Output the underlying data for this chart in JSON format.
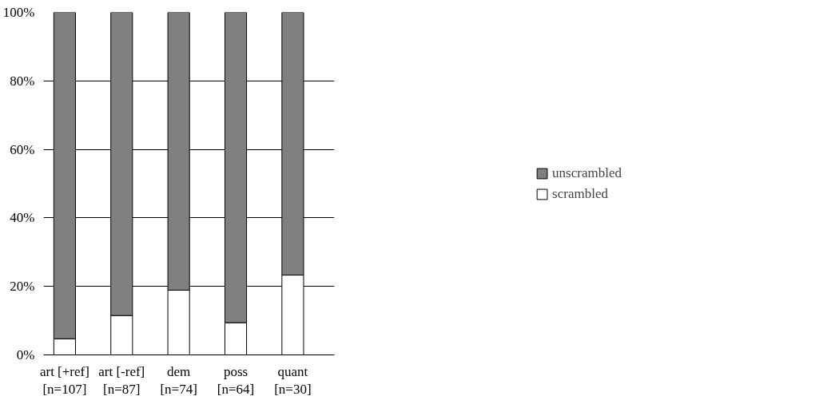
{
  "chart_data": {
    "type": "bar",
    "stacked": true,
    "categories": [
      "art [+ref]\n[n=107]",
      "art [-ref]\n[n=87]",
      "dem\n[n=74]",
      "poss\n[n=64]",
      "quant\n[n=30]"
    ],
    "series": [
      {
        "name": "scrambled",
        "color": "#ffffff",
        "values": [
          4.7,
          11.5,
          18.9,
          9.4,
          23.3
        ]
      },
      {
        "name": "unscrambled",
        "color": "#808080",
        "values": [
          95.3,
          88.5,
          81.1,
          90.6,
          76.7
        ]
      }
    ],
    "ylim": [
      0,
      100
    ],
    "yticks": [
      {
        "value": 0,
        "label": "0%"
      },
      {
        "value": 20,
        "label": "20%"
      },
      {
        "value": 40,
        "label": "40%"
      },
      {
        "value": 60,
        "label": "60%"
      },
      {
        "value": 80,
        "label": "80%"
      },
      {
        "value": 100,
        "label": "100%"
      }
    ],
    "grid": "y",
    "legend": "right"
  }
}
